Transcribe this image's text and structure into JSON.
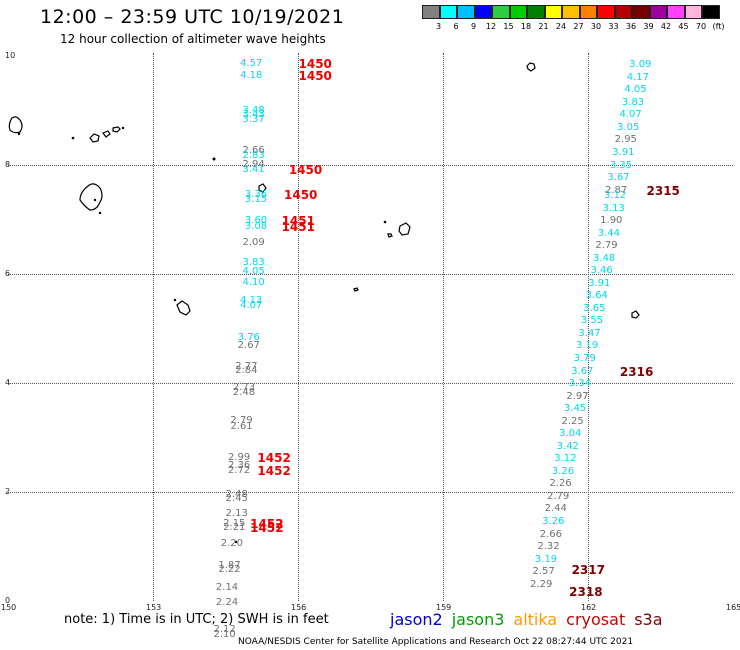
{
  "title": "12:00 – 23:59 UTC 10/19/2021",
  "subtitle": "12 hour collection of altimeter wave heights",
  "colorbar": {
    "colors": [
      "#808080",
      "#00ffff",
      "#00bfff",
      "#0000ff",
      "#2ecc40",
      "#00cc00",
      "#008000",
      "#ffff00",
      "#ffc000",
      "#ff8000",
      "#ff0000",
      "#b40000",
      "#780000",
      "#a000a0",
      "#ff40ff",
      "#ffb4dc",
      "#000000"
    ],
    "labels": [
      "3",
      "6",
      "9",
      "12",
      "15",
      "18",
      "21",
      "24",
      "27",
      "30",
      "33",
      "36",
      "39",
      "42",
      "45",
      "70",
      "(ft)"
    ]
  },
  "axes": {
    "x_ticks": [
      "150",
      "153",
      "156",
      "159",
      "162",
      "165"
    ],
    "y_ticks": [
      "0",
      "2",
      "4",
      "6",
      "8",
      "10"
    ],
    "xlim": [
      150,
      165
    ],
    "ylim": [
      0,
      10
    ]
  },
  "note": "note:  1) Time is in UTC;  2) SWH is in feet",
  "legend": [
    {
      "name": "jason2",
      "color": "#0000d0"
    },
    {
      "name": "jason3",
      "color": "#00a000"
    },
    {
      "name": "altika",
      "color": "#ff9900"
    },
    {
      "name": "cryosat",
      "color": "#cc0000"
    },
    {
      "name": "s3a",
      "color": "#800000"
    }
  ],
  "footer": "NOAA/NESDIS Center for Satellite Applications and Research    Oct 22 08:27:44 UTC 2021",
  "colors": {
    "cyan": "#00d8f0",
    "gray": "#707070",
    "red": "#ee0000",
    "darkred": "#800000"
  },
  "tracks": [
    {
      "name": "track-west",
      "points": [
        {
          "lon": 155.05,
          "lat": 9.86,
          "value": "4.57",
          "color": "cyan"
        },
        {
          "lon": 155.05,
          "lat": 9.63,
          "value": "4.18",
          "color": "cyan"
        },
        {
          "lon": 155.1,
          "lat": 9.0,
          "value": "3.48",
          "color": "cyan"
        },
        {
          "lon": 155.1,
          "lat": 8.92,
          "value": "3.43",
          "color": "cyan"
        },
        {
          "lon": 155.1,
          "lat": 8.83,
          "value": "3.37",
          "color": "cyan"
        },
        {
          "lon": 155.1,
          "lat": 8.25,
          "value": "2.66",
          "color": "gray"
        },
        {
          "lon": 155.1,
          "lat": 8.17,
          "value": "2.83",
          "color": "cyan"
        },
        {
          "lon": 155.1,
          "lat": 8.0,
          "value": "2.94",
          "color": "gray"
        },
        {
          "lon": 155.1,
          "lat": 7.9,
          "value": "3.41",
          "color": "cyan"
        },
        {
          "lon": 155.15,
          "lat": 7.45,
          "value": "3.36",
          "color": "cyan"
        },
        {
          "lon": 155.15,
          "lat": 7.36,
          "value": "3.15",
          "color": "cyan"
        },
        {
          "lon": 155.15,
          "lat": 6.98,
          "value": "3.60",
          "color": "cyan"
        },
        {
          "lon": 155.15,
          "lat": 6.86,
          "value": "3.08",
          "color": "cyan"
        },
        {
          "lon": 155.1,
          "lat": 6.57,
          "value": "2.09",
          "color": "gray"
        },
        {
          "lon": 155.1,
          "lat": 6.2,
          "value": "3.83",
          "color": "cyan"
        },
        {
          "lon": 155.1,
          "lat": 6.03,
          "value": "4.05",
          "color": "cyan"
        },
        {
          "lon": 155.1,
          "lat": 5.83,
          "value": "4.10",
          "color": "cyan"
        },
        {
          "lon": 155.05,
          "lat": 5.5,
          "value": "4.13",
          "color": "cyan"
        },
        {
          "lon": 155.05,
          "lat": 5.42,
          "value": "4.07",
          "color": "cyan"
        },
        {
          "lon": 155.0,
          "lat": 4.82,
          "value": "3.76",
          "color": "cyan"
        },
        {
          "lon": 155.0,
          "lat": 4.67,
          "value": "2.67",
          "color": "gray"
        },
        {
          "lon": 154.95,
          "lat": 4.3,
          "value": "2.77",
          "color": "gray"
        },
        {
          "lon": 154.95,
          "lat": 4.22,
          "value": "2.84",
          "color": "gray"
        },
        {
          "lon": 154.9,
          "lat": 3.9,
          "value": "2.73",
          "color": "gray"
        },
        {
          "lon": 154.9,
          "lat": 3.82,
          "value": "2.48",
          "color": "gray"
        },
        {
          "lon": 154.85,
          "lat": 3.3,
          "value": "2.79",
          "color": "gray"
        },
        {
          "lon": 154.85,
          "lat": 3.2,
          "value": "2.61",
          "color": "gray"
        },
        {
          "lon": 154.8,
          "lat": 2.63,
          "value": "2.99",
          "color": "gray"
        },
        {
          "lon": 154.8,
          "lat": 2.47,
          "value": "2.36",
          "color": "gray"
        },
        {
          "lon": 154.8,
          "lat": 2.38,
          "value": "2.72",
          "color": "gray"
        },
        {
          "lon": 154.75,
          "lat": 1.95,
          "value": "2.48",
          "color": "gray"
        },
        {
          "lon": 154.75,
          "lat": 1.87,
          "value": "2.45",
          "color": "gray"
        },
        {
          "lon": 154.75,
          "lat": 1.6,
          "value": "2.13",
          "color": "gray"
        },
        {
          "lon": 154.7,
          "lat": 1.42,
          "value": "2.15",
          "color": "gray"
        },
        {
          "lon": 154.7,
          "lat": 1.34,
          "value": "2.21",
          "color": "gray"
        },
        {
          "lon": 154.65,
          "lat": 1.04,
          "value": "2.20",
          "color": "gray"
        },
        {
          "lon": 154.6,
          "lat": 0.64,
          "value": "1.87",
          "color": "gray"
        },
        {
          "lon": 154.6,
          "lat": 0.56,
          "value": "2.22",
          "color": "gray"
        },
        {
          "lon": 154.55,
          "lat": 0.24,
          "value": "2.14",
          "color": "gray"
        },
        {
          "lon": 154.55,
          "lat": -0.04,
          "value": "2.24",
          "color": "gray"
        },
        {
          "lon": 154.5,
          "lat": -0.54,
          "value": "2.12",
          "color": "gray"
        },
        {
          "lon": 154.5,
          "lat": -0.62,
          "value": "2.10",
          "color": "gray"
        }
      ]
    },
    {
      "name": "track-east",
      "points": [
        {
          "lon": 163.1,
          "lat": 9.83,
          "value": "3.09",
          "color": "cyan"
        },
        {
          "lon": 163.05,
          "lat": 9.6,
          "value": "4.17",
          "color": "cyan"
        },
        {
          "lon": 163.0,
          "lat": 9.37,
          "value": "4.05",
          "color": "cyan"
        },
        {
          "lon": 162.95,
          "lat": 9.14,
          "value": "3.83",
          "color": "cyan"
        },
        {
          "lon": 162.9,
          "lat": 8.91,
          "value": "4.07",
          "color": "cyan"
        },
        {
          "lon": 162.85,
          "lat": 8.68,
          "value": "3.05",
          "color": "cyan"
        },
        {
          "lon": 162.8,
          "lat": 8.45,
          "value": "2.95",
          "color": "gray"
        },
        {
          "lon": 162.75,
          "lat": 8.22,
          "value": "3.91",
          "color": "cyan"
        },
        {
          "lon": 162.7,
          "lat": 7.99,
          "value": "3.35",
          "color": "cyan"
        },
        {
          "lon": 162.65,
          "lat": 7.76,
          "value": "3.67",
          "color": "cyan"
        },
        {
          "lon": 162.6,
          "lat": 7.53,
          "value": "2.87",
          "color": "gray"
        },
        {
          "lon": 162.58,
          "lat": 7.43,
          "value": "3.12",
          "color": "cyan"
        },
        {
          "lon": 162.55,
          "lat": 7.2,
          "value": "3.13",
          "color": "cyan"
        },
        {
          "lon": 162.5,
          "lat": 6.97,
          "value": "1.90",
          "color": "gray"
        },
        {
          "lon": 162.45,
          "lat": 6.74,
          "value": "3.44",
          "color": "cyan"
        },
        {
          "lon": 162.4,
          "lat": 6.51,
          "value": "2.79",
          "color": "gray"
        },
        {
          "lon": 162.35,
          "lat": 6.28,
          "value": "3.48",
          "color": "cyan"
        },
        {
          "lon": 162.3,
          "lat": 6.05,
          "value": "3.46",
          "color": "cyan"
        },
        {
          "lon": 162.25,
          "lat": 5.82,
          "value": "3.91",
          "color": "cyan"
        },
        {
          "lon": 162.2,
          "lat": 5.59,
          "value": "3.64",
          "color": "cyan"
        },
        {
          "lon": 162.15,
          "lat": 5.36,
          "value": "3.65",
          "color": "cyan"
        },
        {
          "lon": 162.1,
          "lat": 5.13,
          "value": "3.55",
          "color": "cyan"
        },
        {
          "lon": 162.05,
          "lat": 4.9,
          "value": "3.47",
          "color": "cyan"
        },
        {
          "lon": 162.0,
          "lat": 4.67,
          "value": "3.19",
          "color": "cyan"
        },
        {
          "lon": 161.95,
          "lat": 4.44,
          "value": "3.79",
          "color": "cyan"
        },
        {
          "lon": 161.9,
          "lat": 4.21,
          "value": "3.67",
          "color": "cyan"
        },
        {
          "lon": 161.85,
          "lat": 3.98,
          "value": "3.34",
          "color": "cyan"
        },
        {
          "lon": 161.8,
          "lat": 3.75,
          "value": "2.97",
          "color": "gray"
        },
        {
          "lon": 161.75,
          "lat": 3.52,
          "value": "3.45",
          "color": "cyan"
        },
        {
          "lon": 161.7,
          "lat": 3.29,
          "value": "2.25",
          "color": "gray"
        },
        {
          "lon": 161.65,
          "lat": 3.06,
          "value": "3.04",
          "color": "cyan"
        },
        {
          "lon": 161.6,
          "lat": 2.83,
          "value": "3.42",
          "color": "cyan"
        },
        {
          "lon": 161.55,
          "lat": 2.6,
          "value": "3.12",
          "color": "cyan"
        },
        {
          "lon": 161.5,
          "lat": 2.37,
          "value": "3.26",
          "color": "cyan"
        },
        {
          "lon": 161.45,
          "lat": 2.14,
          "value": "2.26",
          "color": "gray"
        },
        {
          "lon": 161.4,
          "lat": 1.91,
          "value": "2.79",
          "color": "gray"
        },
        {
          "lon": 161.35,
          "lat": 1.68,
          "value": "2.44",
          "color": "gray"
        },
        {
          "lon": 161.3,
          "lat": 1.45,
          "value": "3.26",
          "color": "cyan"
        },
        {
          "lon": 161.25,
          "lat": 1.22,
          "value": "2.66",
          "color": "gray"
        },
        {
          "lon": 161.2,
          "lat": 0.99,
          "value": "2.32",
          "color": "gray"
        },
        {
          "lon": 161.15,
          "lat": 0.76,
          "value": "3.19",
          "color": "cyan"
        },
        {
          "lon": 161.1,
          "lat": 0.53,
          "value": "2.57",
          "color": "gray"
        },
        {
          "lon": 161.05,
          "lat": 0.3,
          "value": "2.29",
          "color": "gray"
        }
      ]
    }
  ],
  "pass_times": [
    {
      "lon": 156.3,
      "lat": 9.86,
      "value": "1450",
      "color": "red"
    },
    {
      "lon": 156.3,
      "lat": 9.63,
      "value": "1450",
      "color": "red"
    },
    {
      "lon": 156.1,
      "lat": 7.9,
      "value": "1450",
      "color": "red"
    },
    {
      "lon": 156.0,
      "lat": 7.45,
      "value": "1450",
      "color": "red"
    },
    {
      "lon": 155.95,
      "lat": 6.98,
      "value": "1451",
      "color": "red"
    },
    {
      "lon": 155.95,
      "lat": 6.86,
      "value": "1451",
      "color": "red"
    },
    {
      "lon": 155.45,
      "lat": 2.63,
      "value": "1452",
      "color": "red"
    },
    {
      "lon": 155.45,
      "lat": 2.38,
      "value": "1452",
      "color": "red"
    },
    {
      "lon": 155.3,
      "lat": 1.42,
      "value": "1452",
      "color": "red"
    },
    {
      "lon": 155.3,
      "lat": 1.34,
      "value": "1452",
      "color": "red"
    },
    {
      "lon": 163.5,
      "lat": 7.53,
      "value": "2315",
      "color": "darkred"
    },
    {
      "lon": 162.95,
      "lat": 4.21,
      "value": "2316",
      "color": "darkred"
    },
    {
      "lon": 161.95,
      "lat": 0.56,
      "value": "2317",
      "color": "darkred"
    },
    {
      "lon": 161.9,
      "lat": 0.17,
      "value": "2318",
      "color": "darkred"
    }
  ]
}
